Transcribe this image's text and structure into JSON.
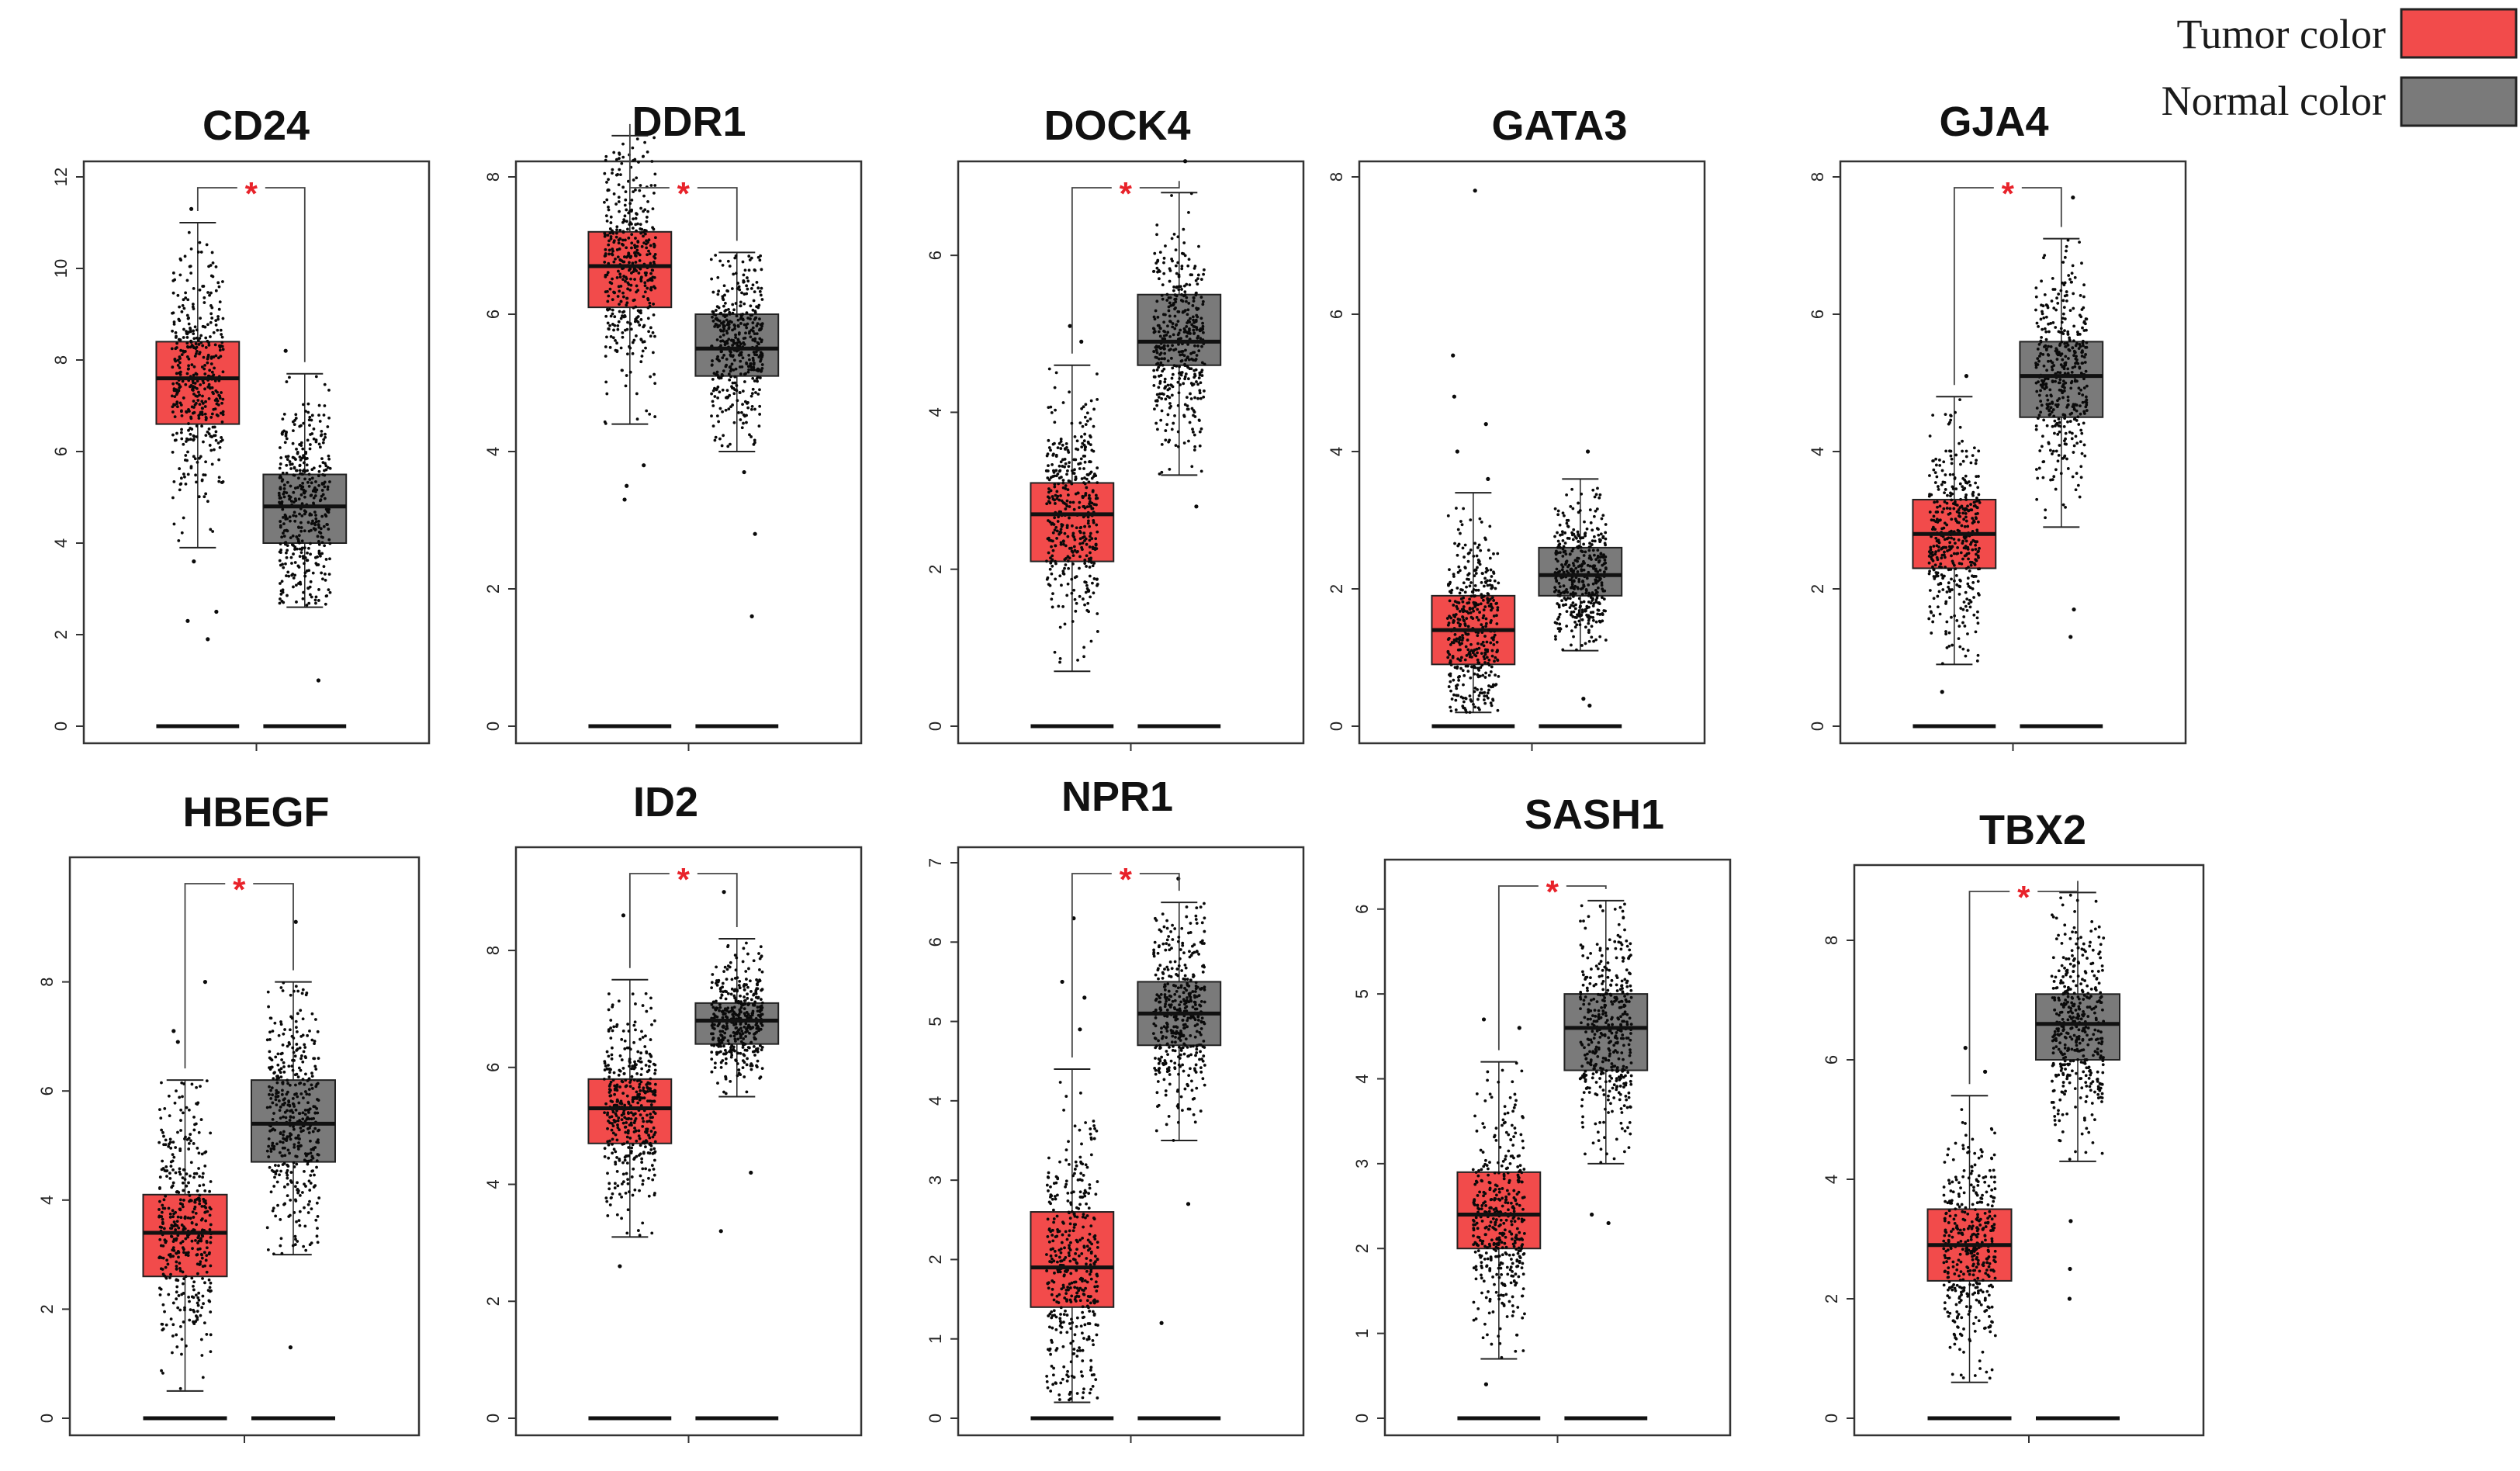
{
  "legend": {
    "tumor_label": "Tumor color",
    "normal_label": "Normal color",
    "tumor_color": "#f24b4b",
    "normal_color": "#7a7a7a"
  },
  "significance_marker": "*",
  "significance_color": "#e8222a",
  "chart_data": [
    {
      "type": "box",
      "title": "CD24",
      "groups": [
        "Tumor",
        "Normal"
      ],
      "ylim": [
        0,
        12
      ],
      "yticks": [
        0,
        2,
        4,
        6,
        8,
        10,
        12
      ],
      "tumor": {
        "min": 3.9,
        "q1": 6.6,
        "median": 7.6,
        "q3": 8.4,
        "max": 11.0,
        "outliers": [
          2.3,
          2.5,
          1.9,
          3.6,
          11.3
        ]
      },
      "normal": {
        "min": 2.6,
        "q1": 4.0,
        "median": 4.8,
        "q3": 5.5,
        "max": 7.7,
        "outliers": [
          1.0,
          8.2
        ]
      },
      "significant": true
    },
    {
      "type": "box",
      "title": "DDR1",
      "groups": [
        "Tumor",
        "Normal"
      ],
      "ylim": [
        0,
        8
      ],
      "yticks": [
        0,
        2,
        4,
        6,
        8
      ],
      "tumor": {
        "min": 4.4,
        "q1": 6.1,
        "median": 6.7,
        "q3": 7.2,
        "max": 8.6,
        "outliers": [
          3.3,
          3.5,
          3.8
        ]
      },
      "normal": {
        "min": 4.0,
        "q1": 5.1,
        "median": 5.5,
        "q3": 6.0,
        "max": 6.9,
        "outliers": [
          2.8,
          1.6,
          3.7
        ]
      },
      "significant": true
    },
    {
      "type": "box",
      "title": "DOCK4",
      "groups": [
        "Tumor",
        "Normal"
      ],
      "ylim": [
        0,
        7
      ],
      "yticks": [
        0,
        2,
        4,
        6
      ],
      "tumor": {
        "min": 0.7,
        "q1": 2.1,
        "median": 2.7,
        "q3": 3.1,
        "max": 4.6,
        "outliers": [
          5.1,
          4.9
        ]
      },
      "normal": {
        "min": 3.2,
        "q1": 4.6,
        "median": 4.9,
        "q3": 5.5,
        "max": 6.8,
        "outliers": [
          2.8,
          7.2
        ]
      },
      "significant": true
    },
    {
      "type": "box",
      "title": "GATA3",
      "groups": [
        "Tumor",
        "Normal"
      ],
      "ylim": [
        0,
        8
      ],
      "yticks": [
        0,
        2,
        4,
        6,
        8
      ],
      "tumor": {
        "min": 0.2,
        "q1": 0.9,
        "median": 1.4,
        "q3": 1.9,
        "max": 3.4,
        "outliers": [
          7.8,
          5.4,
          4.8,
          4.4,
          4.0,
          3.6
        ]
      },
      "normal": {
        "min": 1.1,
        "q1": 1.9,
        "median": 2.2,
        "q3": 2.6,
        "max": 3.6,
        "outliers": [
          0.3,
          0.4,
          4.0
        ]
      },
      "significant": false
    },
    {
      "type": "box",
      "title": "GJA4",
      "groups": [
        "Tumor",
        "Normal"
      ],
      "ylim": [
        0,
        8
      ],
      "yticks": [
        0,
        2,
        4,
        6,
        8
      ],
      "tumor": {
        "min": 0.9,
        "q1": 2.3,
        "median": 2.8,
        "q3": 3.3,
        "max": 4.8,
        "outliers": [
          0.5,
          5.1
        ]
      },
      "normal": {
        "min": 2.9,
        "q1": 4.5,
        "median": 5.1,
        "q3": 5.6,
        "max": 7.1,
        "outliers": [
          1.3,
          1.7,
          7.7
        ]
      },
      "significant": true
    },
    {
      "type": "box",
      "title": "HBEGF",
      "groups": [
        "Tumor",
        "Normal"
      ],
      "ylim": [
        0,
        10
      ],
      "yticks": [
        0,
        2,
        4,
        6,
        8
      ],
      "tumor": {
        "min": 0.5,
        "q1": 2.6,
        "median": 3.4,
        "q3": 4.1,
        "max": 6.2,
        "outliers": [
          8.0,
          7.1,
          6.9
        ]
      },
      "normal": {
        "min": 3.0,
        "q1": 4.7,
        "median": 5.4,
        "q3": 6.2,
        "max": 8.0,
        "outliers": [
          1.3,
          9.1
        ]
      },
      "significant": true
    },
    {
      "type": "box",
      "title": "ID2",
      "groups": [
        "Tumor",
        "Normal"
      ],
      "ylim": [
        0,
        9.5
      ],
      "yticks": [
        0,
        2,
        4,
        6,
        8
      ],
      "tumor": {
        "min": 3.1,
        "q1": 4.7,
        "median": 5.3,
        "q3": 5.8,
        "max": 7.5,
        "outliers": [
          2.6,
          8.6
        ]
      },
      "normal": {
        "min": 5.5,
        "q1": 6.4,
        "median": 6.8,
        "q3": 7.1,
        "max": 8.2,
        "outliers": [
          3.2,
          4.2,
          9.0
        ]
      },
      "significant": true
    },
    {
      "type": "box",
      "title": "NPR1",
      "groups": [
        "Tumor",
        "Normal"
      ],
      "ylim": [
        0,
        7
      ],
      "yticks": [
        0,
        1,
        2,
        3,
        4,
        5,
        6,
        7
      ],
      "tumor": {
        "min": 0.2,
        "q1": 1.4,
        "median": 1.9,
        "q3": 2.6,
        "max": 4.4,
        "outliers": [
          6.3,
          5.5,
          5.3,
          4.9
        ]
      },
      "normal": {
        "min": 3.5,
        "q1": 4.7,
        "median": 5.1,
        "q3": 5.5,
        "max": 6.5,
        "outliers": [
          1.2,
          2.7,
          6.8
        ]
      },
      "significant": true
    },
    {
      "type": "box",
      "title": "SASH1",
      "groups": [
        "Tumor",
        "Normal"
      ],
      "ylim": [
        0,
        6.4
      ],
      "yticks": [
        0,
        1,
        2,
        3,
        4,
        5,
        6
      ],
      "tumor": {
        "min": 0.7,
        "q1": 2.0,
        "median": 2.4,
        "q3": 2.9,
        "max": 4.2,
        "outliers": [
          0.4,
          4.7,
          4.6
        ]
      },
      "normal": {
        "min": 3.0,
        "q1": 4.1,
        "median": 4.6,
        "q3": 5.0,
        "max": 6.1,
        "outliers": [
          2.3,
          2.4
        ]
      },
      "significant": true
    },
    {
      "type": "box",
      "title": "TBX2",
      "groups": [
        "Tumor",
        "Normal"
      ],
      "ylim": [
        0,
        9
      ],
      "yticks": [
        0,
        2,
        4,
        6,
        8
      ],
      "tumor": {
        "min": 0.6,
        "q1": 2.3,
        "median": 2.9,
        "q3": 3.5,
        "max": 5.4,
        "outliers": [
          6.2,
          5.8
        ]
      },
      "normal": {
        "min": 4.3,
        "q1": 6.0,
        "median": 6.6,
        "q3": 7.1,
        "max": 8.8,
        "outliers": [
          2.0,
          2.5,
          3.3
        ]
      },
      "significant": true
    }
  ]
}
